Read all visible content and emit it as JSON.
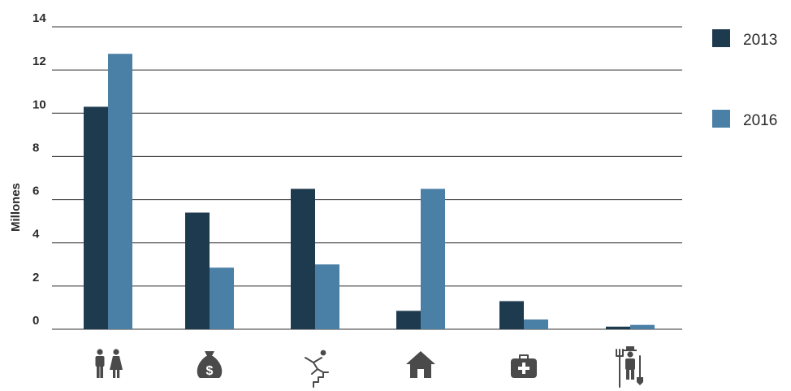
{
  "chart_data": {
    "type": "bar",
    "title": "",
    "xlabel": "",
    "ylabel": "Millones",
    "ylim": [
      0,
      14
    ],
    "yticks": [
      0,
      2,
      4,
      6,
      8,
      10,
      12,
      14
    ],
    "grid": true,
    "legend_position": "right",
    "categories": [
      "people-icon",
      "money-bag-icon",
      "falling-stairs-icon",
      "house-icon",
      "medical-kit-icon",
      "farmer-icon"
    ],
    "series": [
      {
        "name": "2013",
        "color": "#1e3a4f",
        "values": [
          10.3,
          5.4,
          6.5,
          0.85,
          1.3,
          0.12
        ]
      },
      {
        "name": "2016",
        "color": "#4a7fa6",
        "values": [
          12.75,
          2.85,
          3.0,
          6.5,
          0.45,
          0.2
        ]
      }
    ]
  }
}
